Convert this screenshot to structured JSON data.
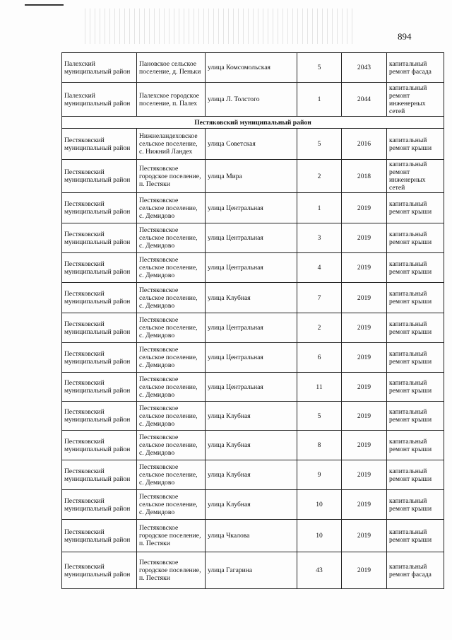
{
  "page_number": "894",
  "rows": [
    {
      "district": "Палехский муниципальный район",
      "settlement": "Пановское сельское поселение, д. Пеньки",
      "street": "улица Комсомольская",
      "house": "5",
      "year": "2043",
      "work": "капитальный ремонт фасада"
    },
    {
      "district": "Палехский муниципальный район",
      "settlement": "Палехское городское поселение, п. Палех",
      "street": "улица Л. Толстого",
      "house": "1",
      "year": "2044",
      "work": "капитальный ремонт инженерных сетей"
    },
    {
      "section": "Пестяковский муниципальный район"
    },
    {
      "district": "Пестяковский муниципальный район",
      "settlement": "Нижнеландеховское сельское поселение, с. Нижний Ландех",
      "street": "улица Советская",
      "house": "5",
      "year": "2016",
      "work": "капитальный ремонт крыши"
    },
    {
      "district": "Пестяковский муниципальный район",
      "settlement": "Пестяковское городское поселение, п. Пестяки",
      "street": "улица Мира",
      "house": "2",
      "year": "2018",
      "work": "капитальный ремонт инженерных сетей"
    },
    {
      "district": "Пестяковский муниципальный район",
      "settlement": "Пестяковское сельское поселение, с. Демидово",
      "street": "улица Центральная",
      "house": "1",
      "year": "2019",
      "work": "капитальный ремонт крыши"
    },
    {
      "district": "Пестяковский муниципальный район",
      "settlement": "Пестяковское сельское поселение, с. Демидово",
      "street": "улица Центральная",
      "house": "3",
      "year": "2019",
      "work": "капитальный ремонт крыши"
    },
    {
      "district": "Пестяковский муниципальный район",
      "settlement": "Пестяковское сельское поселение, с. Демидово",
      "street": "улица Центральная",
      "house": "4",
      "year": "2019",
      "work": "капитальный ремонт крыши"
    },
    {
      "district": "Пестяковский муниципальный район",
      "settlement": "Пестяковское сельское поселение, с. Демидово",
      "street": "улица Клубная",
      "house": "7",
      "year": "2019",
      "work": "капитальный ремонт крыши"
    },
    {
      "district": "Пестяковский муниципальный район",
      "settlement": "Пестяковское сельское поселение, с. Демидово",
      "street": "улица Центральная",
      "house": "2",
      "year": "2019",
      "work": "капитальный ремонт крыши"
    },
    {
      "district": "Пестяковский муниципальный район",
      "settlement": "Пестяковское сельское поселение, с. Демидово",
      "street": "улица Центральная",
      "house": "6",
      "year": "2019",
      "work": "капитальный ремонт крыши"
    },
    {
      "district": "Пестяковский муниципальный район",
      "settlement": "Пестяковское сельское поселение, с. Демидово",
      "street": "улица Центральная",
      "house": "11",
      "year": "2019",
      "work": "капитальный ремонт крыши"
    },
    {
      "district": "Пестяковский муниципальный район",
      "settlement": "Пестяковское сельское поселение, с. Демидово",
      "street": "улица Клубная",
      "house": "5",
      "year": "2019",
      "work": "капитальный ремонт крыши"
    },
    {
      "district": "Пестяковский муниципальный район",
      "settlement": "Пестяковское сельское поселение, с. Демидово",
      "street": "улица Клубная",
      "house": "8",
      "year": "2019",
      "work": "капитальный ремонт крыши"
    },
    {
      "district": "Пестяковский муниципальный район",
      "settlement": "Пестяковское сельское поселение, с. Демидово",
      "street": "улица Клубная",
      "house": "9",
      "year": "2019",
      "work": "капитальный ремонт крыши"
    },
    {
      "district": "Пестяковский муниципальный район",
      "settlement": "Пестяковское сельское поселение, с. Демидово",
      "street": "улица Клубная",
      "house": "10",
      "year": "2019",
      "work": "капитальный ремонт крыши"
    },
    {
      "district": "Пестяковский муниципальный район",
      "settlement": "Пестяковское городское поселение, п. Пестяки",
      "street": "улица Чкалова",
      "house": "10",
      "year": "2019",
      "work": "капитальный ремонт крыши"
    },
    {
      "district": "Пестяковский муниципальный район",
      "settlement": "Пестяковское городское поселение, п. Пестяки",
      "street": "улица Гагарина",
      "house": "43",
      "year": "2019",
      "work": "капитальный ремонт фасада"
    }
  ]
}
